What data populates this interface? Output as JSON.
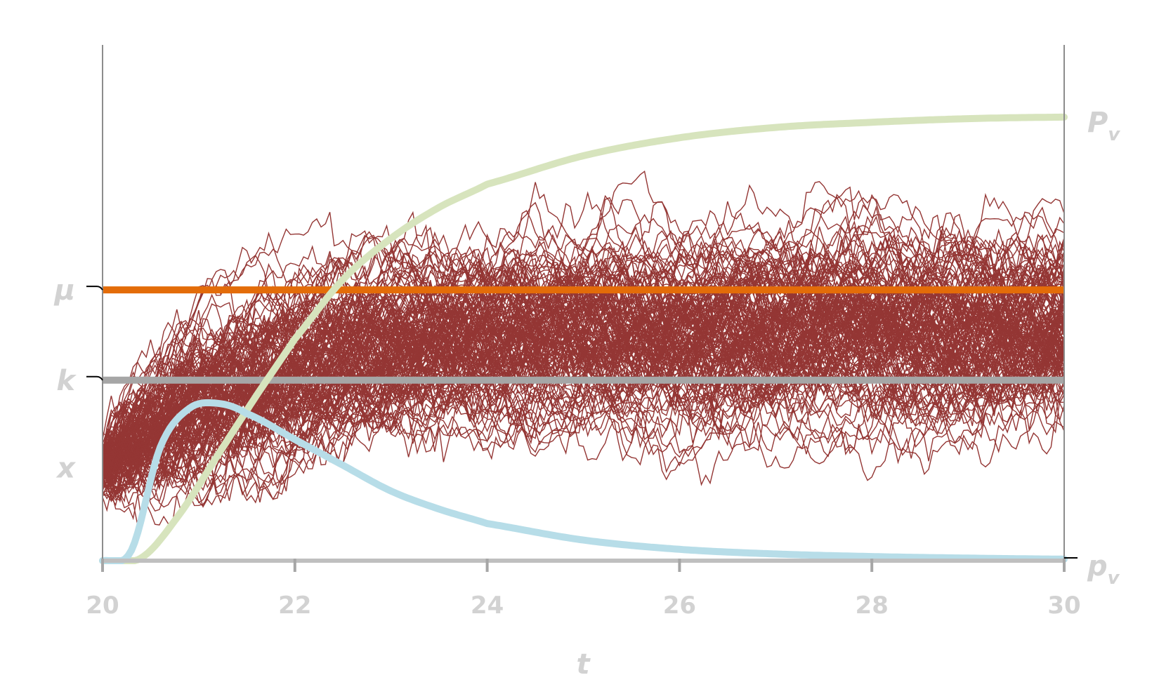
{
  "chart_data": {
    "type": "line",
    "title": "",
    "xlabel": "t",
    "ylabel": "",
    "xlim": [
      20,
      30
    ],
    "x_ticks": [
      "20",
      "22",
      "24",
      "26",
      "28",
      "30"
    ],
    "ylim": [
      0,
      10
    ],
    "grid": false,
    "legend": "none",
    "y_labels": [
      {
        "label": "μ",
        "value": 5.25
      },
      {
        "label": "k",
        "value": 3.5
      },
      {
        "label": "x",
        "value": 1.8
      }
    ],
    "right_labels": [
      {
        "label": "P",
        "sub": "v",
        "value": 8.6
      },
      {
        "label": "p",
        "sub": "v",
        "value": 0.0
      }
    ],
    "series": [
      {
        "kind": "simulated-paths",
        "color": "#943634",
        "count": 150,
        "start": 1.8,
        "mean_level": 4.6,
        "spread_end": 0.85,
        "x": [
          20,
          30
        ]
      },
      {
        "kind": "level",
        "color": "#e36c09",
        "x": [
          20,
          30
        ],
        "values": [
          5.25,
          5.25
        ]
      },
      {
        "kind": "level",
        "color": "#a6a6a6",
        "x": [
          20,
          30
        ],
        "values": [
          3.5,
          3.5
        ]
      },
      {
        "kind": "curve",
        "color": "#d7e4bd",
        "x": [
          20,
          20.4,
          20.8,
          21.2,
          21.6,
          22,
          22.5,
          23,
          23.5,
          24,
          25,
          26,
          27,
          28,
          29,
          30
        ],
        "values": [
          0,
          0.05,
          0.9,
          2.05,
          3.2,
          4.3,
          5.45,
          6.25,
          6.85,
          7.3,
          7.85,
          8.2,
          8.4,
          8.5,
          8.57,
          8.6
        ]
      },
      {
        "kind": "curve",
        "color": "#b7dde8",
        "x": [
          20,
          20.3,
          20.6,
          20.9,
          21.2,
          21.5,
          22,
          22.5,
          23,
          23.5,
          24,
          25,
          26,
          27,
          28,
          29,
          30
        ],
        "values": [
          0,
          0.2,
          2.2,
          2.95,
          3.05,
          2.85,
          2.35,
          1.85,
          1.35,
          1.0,
          0.72,
          0.4,
          0.22,
          0.13,
          0.08,
          0.05,
          0.03
        ]
      }
    ]
  }
}
